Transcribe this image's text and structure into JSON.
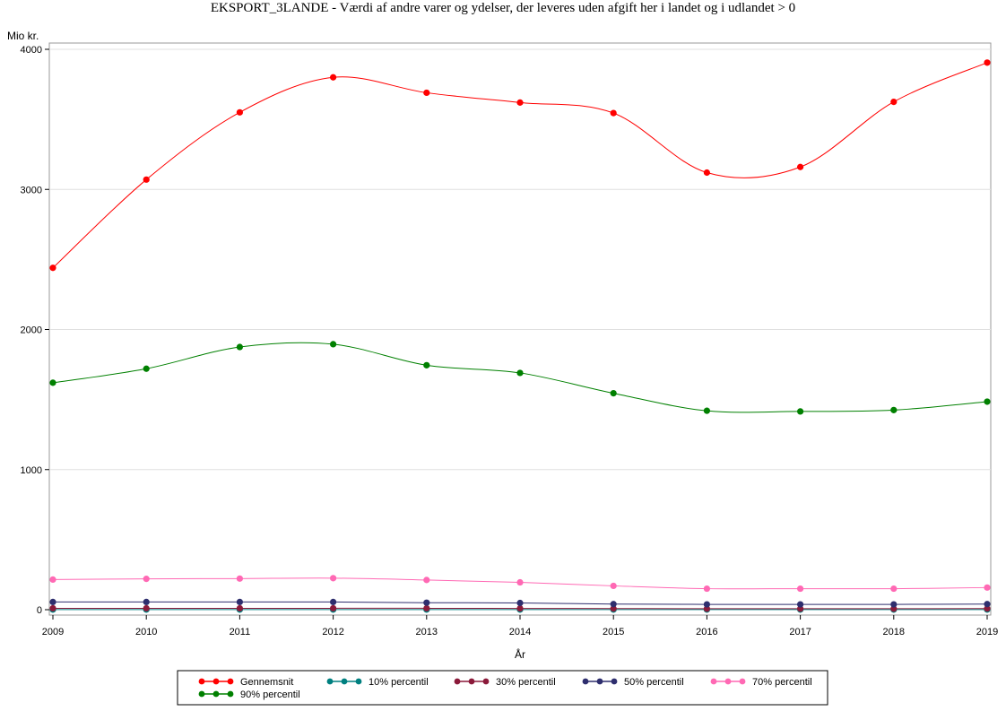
{
  "chart_data": {
    "type": "line",
    "title": "EKSPORT_3LANDE - Værdi af andre varer og ydelser, der leveres uden afgift her i landet og i udlandet > 0",
    "xlabel": "År",
    "ylabel": "Mio kr.",
    "x": [
      2009,
      2010,
      2011,
      2012,
      2013,
      2014,
      2015,
      2016,
      2017,
      2018,
      2019
    ],
    "xlim": [
      2009,
      2019
    ],
    "ylim": [
      0,
      4000
    ],
    "yticks": [
      0,
      1000,
      2000,
      3000,
      4000
    ],
    "grid": true,
    "legend_position": "bottom",
    "series": [
      {
        "name": "Gennemsnit",
        "color": "#ff0000",
        "values": [
          2440,
          3070,
          3550,
          3800,
          3690,
          3620,
          3545,
          3120,
          3160,
          3625,
          3905
        ]
      },
      {
        "name": "10% percentil",
        "color": "#008080",
        "values": [
          1,
          1,
          1,
          1,
          1,
          1,
          1,
          1,
          1,
          1,
          1
        ]
      },
      {
        "name": "30% percentil",
        "color": "#8b1a3a",
        "values": [
          10,
          10,
          10,
          10,
          10,
          9,
          8,
          7,
          7,
          7,
          8
        ]
      },
      {
        "name": "50% percentil",
        "color": "#2e2e6e",
        "values": [
          55,
          55,
          55,
          55,
          50,
          48,
          40,
          38,
          38,
          38,
          40
        ]
      },
      {
        "name": "70% percentil",
        "color": "#ff69b4",
        "values": [
          215,
          220,
          222,
          225,
          212,
          195,
          170,
          150,
          150,
          150,
          158
        ]
      },
      {
        "name": "90% percentil",
        "color": "#008000",
        "values": [
          1620,
          1720,
          1875,
          1895,
          1745,
          1690,
          1545,
          1420,
          1415,
          1425,
          1485
        ]
      }
    ]
  }
}
